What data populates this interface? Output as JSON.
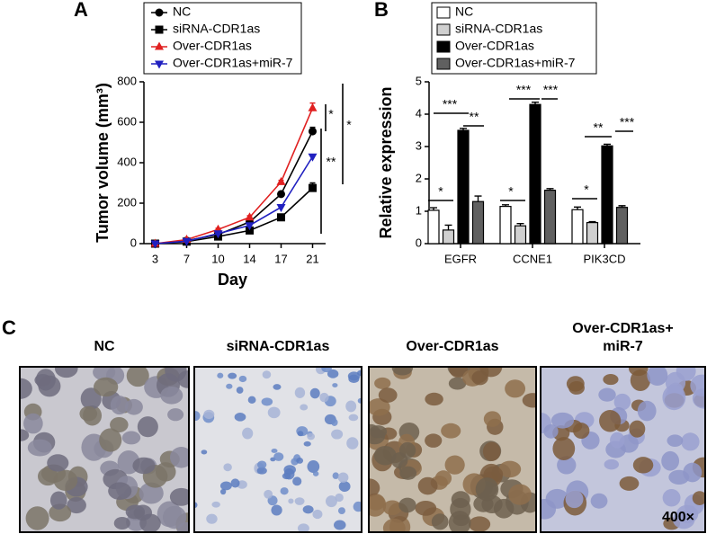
{
  "chart_data": [
    {
      "type": "line",
      "panel": "A",
      "categories": [
        "3",
        "7",
        "10",
        "14",
        "17",
        "21"
      ],
      "x_label": "Day",
      "y_label": "Tumor volume (mm³)",
      "ylim": [
        0,
        800
      ],
      "yticks": [
        0,
        200,
        400,
        600,
        800
      ],
      "series": [
        {
          "name": "NC",
          "color": "#000000",
          "marker": "circle",
          "values": [
            0,
            15,
            45,
            107,
            245,
            555
          ],
          "errors": [
            0,
            3,
            6,
            8,
            10,
            20
          ]
        },
        {
          "name": "siRNA-CDR1as",
          "color": "#000000",
          "marker": "square",
          "values": [
            0,
            10,
            35,
            65,
            130,
            275
          ],
          "errors": [
            0,
            3,
            5,
            6,
            8,
            25
          ]
        },
        {
          "name": "Over-CDR1as",
          "color": "#e02020",
          "marker": "triangle-up",
          "values": [
            0,
            20,
            70,
            130,
            305,
            670
          ],
          "errors": [
            0,
            3,
            6,
            8,
            8,
            25
          ]
        },
        {
          "name": "Over-CDR1as+miR-7",
          "color": "#2020c0",
          "marker": "triangle-down",
          "values": [
            0,
            12,
            50,
            90,
            180,
            430
          ],
          "errors": [
            0,
            3,
            5,
            6,
            8,
            10
          ]
        }
      ],
      "annotations": [
        "*",
        "*",
        "**"
      ]
    },
    {
      "type": "bar",
      "panel": "B",
      "categories": [
        "EGFR",
        "CCNE1",
        "PIK3CD"
      ],
      "y_label": "Relative expression",
      "ylim": [
        0,
        5
      ],
      "yticks": [
        0,
        1,
        2,
        3,
        4,
        5
      ],
      "series": [
        {
          "name": "NC",
          "color": "#ffffff",
          "values": [
            1.03,
            1.15,
            1.05
          ],
          "errors": [
            0.08,
            0.05,
            0.08
          ]
        },
        {
          "name": "siRNA-CDR1as",
          "color": "#d0d0d0",
          "values": [
            0.42,
            0.55,
            0.65
          ],
          "errors": [
            0.15,
            0.07,
            0.03
          ]
        },
        {
          "name": "Over-CDR1as",
          "color": "#000000",
          "values": [
            3.5,
            4.3,
            3.02
          ],
          "errors": [
            0.06,
            0.07,
            0.05
          ]
        },
        {
          "name": "Over-CDR1as+miR-7",
          "color": "#606060",
          "values": [
            1.3,
            1.65,
            1.12
          ],
          "errors": [
            0.17,
            0.05,
            0.05
          ]
        }
      ],
      "annotations": [
        "*",
        "***",
        "**",
        "*",
        "***",
        "***",
        "*",
        "**",
        "***"
      ]
    }
  ],
  "panel_c": {
    "label": "C",
    "titles": [
      [
        "NC"
      ],
      [
        "siRNA-CDR1as"
      ],
      [
        "Over-CDR1as"
      ],
      [
        "Over-CDR1as+",
        "miR-7"
      ]
    ],
    "magnification": "400×"
  }
}
